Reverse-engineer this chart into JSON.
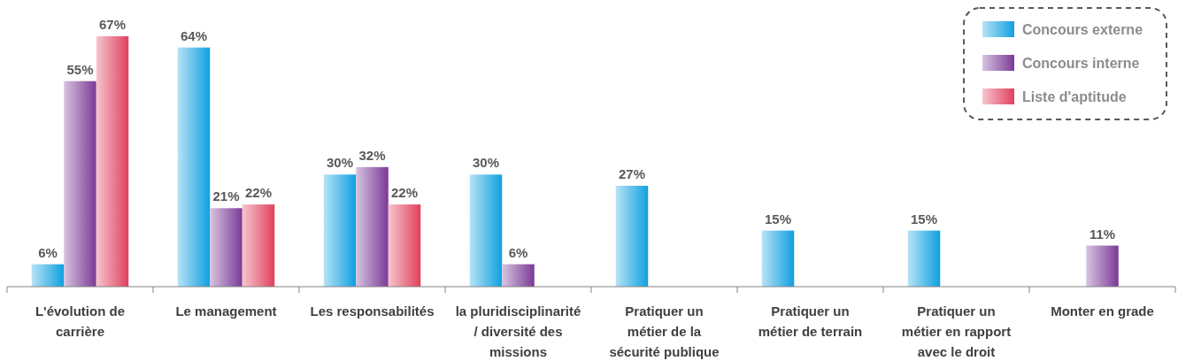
{
  "chart_data": {
    "type": "bar",
    "categories": [
      "L'évolution de\ncarrière",
      "Le management",
      "Les responsabilités",
      "la pluridisciplinarité\n/ diversité des\nmissions",
      "Pratiquer un\nmétier de la\nsécurité publique",
      "Pratiquer un\nmétier de terrain",
      "Pratiquer un\nmétier en rapport\navec le droit",
      "Monter en grade"
    ],
    "series": [
      {
        "name": "Concours externe",
        "color": "#0fa0e0",
        "values": [
          6,
          64,
          30,
          30,
          27,
          15,
          15,
          null
        ],
        "value_labels": [
          "6%",
          "64%",
          "30%",
          "30%",
          "27%",
          "15%",
          "15%",
          null
        ]
      },
      {
        "name": "Concours interne",
        "color": "#7a3a96",
        "values": [
          55,
          21,
          32,
          6,
          null,
          null,
          null,
          11
        ],
        "value_labels": [
          "55%",
          "21%",
          "32%",
          "6%",
          null,
          null,
          null,
          "11%"
        ]
      },
      {
        "name": "Liste d'aptitude",
        "color": "#e0405c",
        "values": [
          67,
          22,
          22,
          null,
          null,
          null,
          null,
          null
        ],
        "value_labels": [
          "67%",
          "22%",
          "22%",
          null,
          null,
          null,
          null,
          null
        ]
      }
    ],
    "legend": "top right"
  }
}
